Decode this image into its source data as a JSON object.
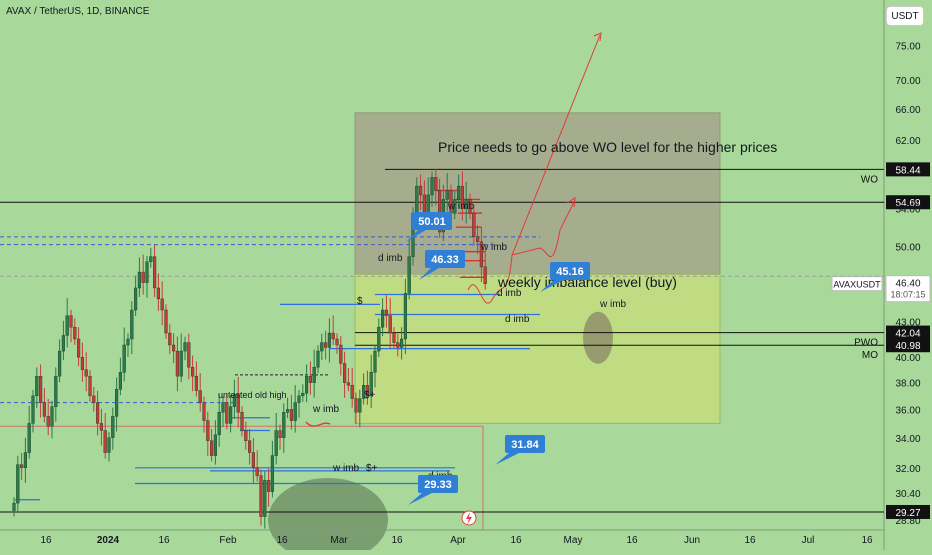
{
  "header": {
    "title": "AVAX / TetherUS, 1D, BINANCE",
    "currency": "USDT"
  },
  "colors": {
    "background": "#a8d99a",
    "up": "#2a7a4a",
    "down": "#c83a3a",
    "axis_text": "#131722",
    "label_blue": "#2f7fd6",
    "zone_upper": "#a6a58c",
    "zone_lower": "#c2dd80"
  },
  "chart_data": {
    "type": "candlestick",
    "y_scale": "log",
    "ylim": [
      28.8,
      79.0
    ],
    "y_ticks": [
      "75.00",
      "70.00",
      "66.00",
      "62.00",
      "58.44",
      "54.69",
      "54.00",
      "50.00",
      "46.40",
      "43.00",
      "42.04",
      "40.98",
      "40.00",
      "38.00",
      "36.00",
      "34.00",
      "32.00",
      "30.40",
      "29.27",
      "28.80"
    ],
    "x_ticks": [
      "16",
      "2024",
      "16",
      "Feb",
      "16",
      "Mar",
      "16",
      "Apr",
      "16",
      "May",
      "16",
      "Jun",
      "16",
      "Jul",
      "16"
    ],
    "x_range_days": [
      0,
      200
    ],
    "last_candle_day": 114,
    "candles_close": [
      29.8,
      32.2,
      32.0,
      33.0,
      35.0,
      37.0,
      38.5,
      36.5,
      35.5,
      34.8,
      36.2,
      38.5,
      40.5,
      41.8,
      43.5,
      42.5,
      41.5,
      40.0,
      39.0,
      38.5,
      37.0,
      36.5,
      35.0,
      34.5,
      33.0,
      34.0,
      35.5,
      37.5,
      38.8,
      41.0,
      41.5,
      44.0,
      46.0,
      47.5,
      46.5,
      48.5,
      49.0,
      46.0,
      45.0,
      44.0,
      42.0,
      41.0,
      40.5,
      38.5,
      40.5,
      41.2,
      39.2,
      38.5,
      37.4,
      36.5,
      35.2,
      33.8,
      32.8,
      34.2,
      35.8,
      36.5,
      35.0,
      36.2,
      37.1,
      35.8,
      34.5,
      33.8,
      33.0,
      32.0,
      31.5,
      29.0,
      31.2,
      30.5,
      32.8,
      34.5,
      34.0,
      35.8,
      36.0,
      35.2,
      36.5,
      37.0,
      37.2,
      38.5,
      38.0,
      39.2,
      40.5,
      41.2,
      40.8,
      42.0,
      41.5,
      41.0,
      39.5,
      38.0,
      37.8,
      36.8,
      35.8,
      36.8,
      37.8,
      37.0,
      38.8,
      40.5,
      42.5,
      44.0,
      43.5,
      42.0,
      41.2,
      40.8,
      41.5,
      45.5,
      49.0,
      53.5,
      56.5,
      55.5,
      53.0,
      55.5,
      57.5,
      56.0,
      51.5,
      55.0,
      56.0,
      53.5,
      55.0,
      56.5,
      54.0,
      55.0,
      53.5,
      51.0,
      50.5,
      48.0,
      46.4
    ],
    "annotations": {
      "note_main": "Price needs to go above WO level for the higher prices",
      "note_weekly": "weekly imbalance level (buy)",
      "note_untested": "untested old high",
      "imb": [
        "w imb",
        "w imb",
        "w imb",
        "d imb",
        "d imb",
        "d imb",
        "w imb",
        "w imb",
        "d imb"
      ],
      "markers": [
        "$",
        "$+",
        "$+"
      ]
    },
    "levels": [
      {
        "name": "WO",
        "value": 58.44
      },
      {
        "name": "",
        "value": 54.69
      },
      {
        "name": "PWO",
        "value": 42.04
      },
      {
        "name": "MO",
        "value": 40.98
      },
      {
        "name": "",
        "value": 29.27
      }
    ],
    "callouts": [
      "50.01",
      "46.33",
      "45.16",
      "31.84",
      "29.33"
    ],
    "current_price": {
      "symbol": "AVAXUSDT",
      "value": "46.40",
      "countdown": "18:07:15"
    }
  }
}
